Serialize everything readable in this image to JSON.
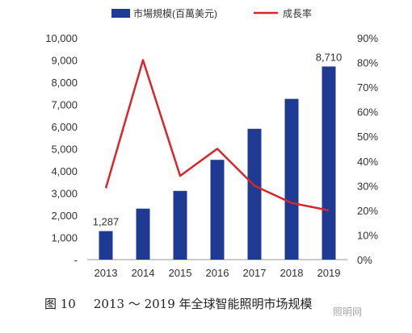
{
  "chart_data": {
    "type": "bar",
    "categories": [
      "2013",
      "2014",
      "2015",
      "2016",
      "2017",
      "2018",
      "2019"
    ],
    "series": [
      {
        "name": "市場規模(百萬美元)",
        "type": "bar",
        "axis": "left",
        "color": "#1f3a93",
        "values": [
          1287,
          2300,
          3100,
          4500,
          5900,
          7250,
          8710
        ],
        "data_labels": {
          "0": "1,287",
          "6": "8,710"
        }
      },
      {
        "name": "成長率",
        "type": "line",
        "axis": "right",
        "color": "#d9252c",
        "values": [
          29,
          81,
          34,
          45,
          30,
          23,
          20
        ]
      }
    ],
    "y_left": {
      "range": [
        0,
        10000
      ],
      "ticks": [
        "-",
        "1,000",
        "2,000",
        "3,000",
        "4,000",
        "5,000",
        "6,000",
        "7,000",
        "8,000",
        "9,000",
        "10,000"
      ]
    },
    "y_right": {
      "range": [
        0,
        90
      ],
      "ticks": [
        "0%",
        "10%",
        "20%",
        "30%",
        "40%",
        "50%",
        "60%",
        "70%",
        "80%",
        "90%"
      ]
    },
    "legend_position": "top",
    "grid": false
  },
  "caption": {
    "figure": "图 10",
    "text": "2013 ～ 2019 年全球智能照明市场规模"
  },
  "watermark": "照明网"
}
